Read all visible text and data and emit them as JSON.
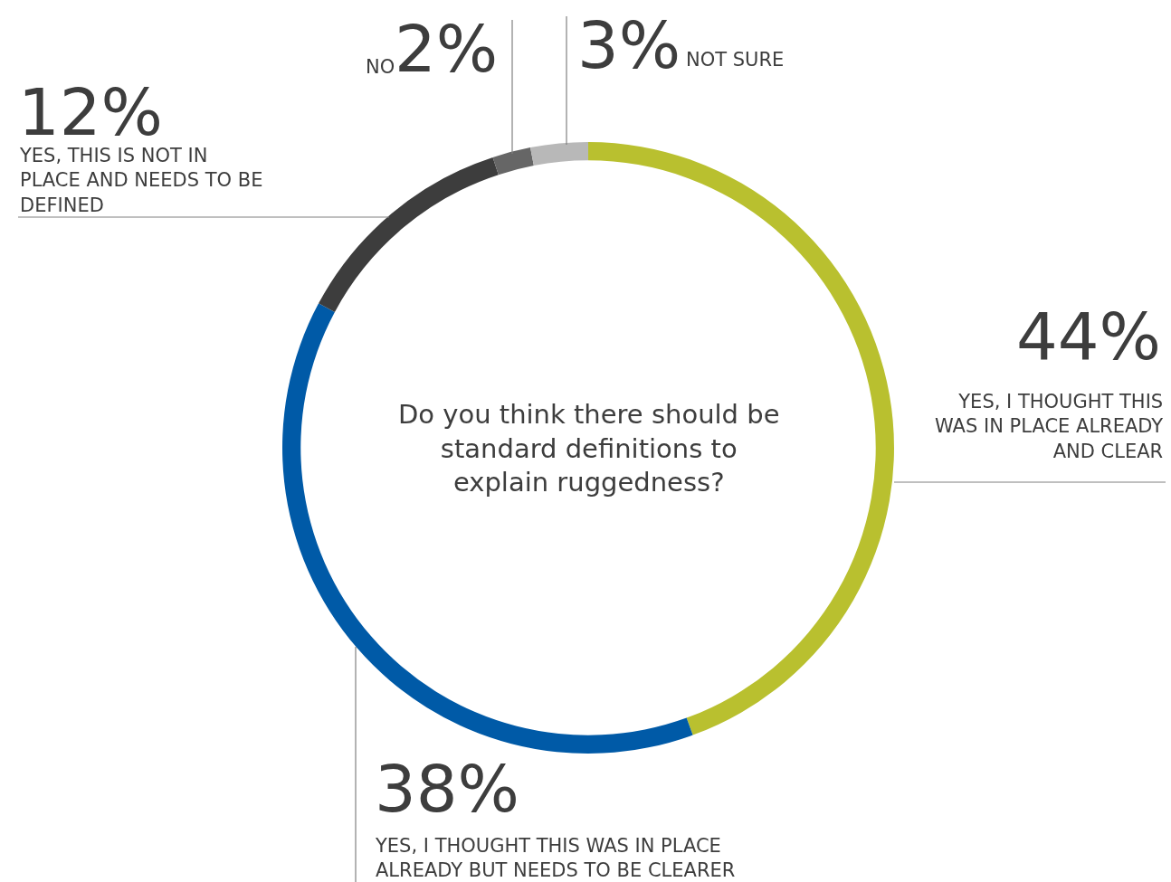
{
  "chart_data": {
    "type": "donut",
    "title": "Do you think there should be standard definitions to explain ruggedness?",
    "categories": [
      "YES, I THOUGHT THIS WAS IN PLACE ALREADY AND CLEAR",
      "YES, I THOUGHT THIS WAS IN PLACE ALREADY BUT NEEDS TO BE CLEARER",
      "YES, THIS IS NOT IN PLACE AND NEEDS TO BE DEFINED",
      "NO",
      "NOT SURE"
    ],
    "values": [
      44,
      38,
      12,
      2,
      3
    ],
    "value_labels": [
      "44%",
      "38%",
      "12%",
      "2%",
      "3%"
    ],
    "colors": [
      "#b9c02f",
      "#005aa7",
      "#3d3d3d",
      "#666666",
      "#b8b8b8"
    ]
  }
}
